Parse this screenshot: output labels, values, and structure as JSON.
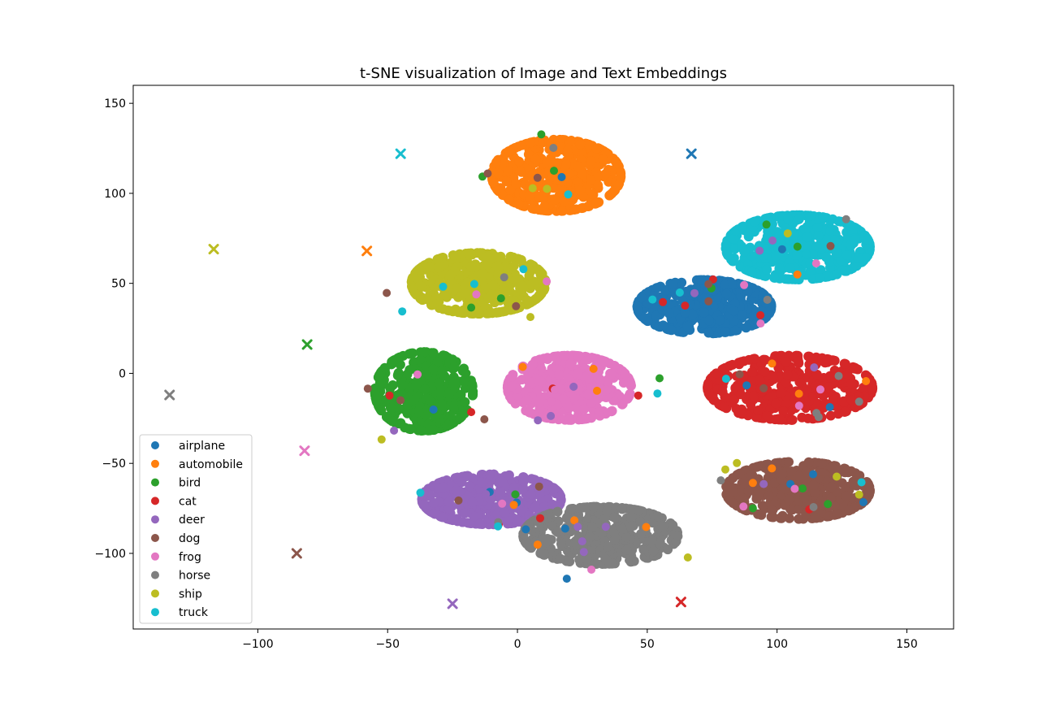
{
  "chart_data": {
    "type": "scatter",
    "title": "t-SNE visualization of Image and Text Embeddings",
    "xlabel": "",
    "ylabel": "",
    "xlim": [
      -148,
      168
    ],
    "ylim": [
      -142,
      160
    ],
    "xticks": [
      -100,
      -50,
      0,
      50,
      100,
      150
    ],
    "xtick_labels": [
      "−100",
      "−50",
      "0",
      "50",
      "100",
      "150"
    ],
    "yticks": [
      -100,
      -50,
      0,
      50,
      100,
      150
    ],
    "ytick_labels": [
      "−100",
      "−50",
      "0",
      "50",
      "100",
      "150"
    ],
    "grid": false,
    "legend_position": "lower-left",
    "series": [
      {
        "name": "airplane",
        "color": "#1f77b4",
        "cluster": {
          "center": [
            72,
            37
          ],
          "spread": [
            26,
            15
          ],
          "count": 420
        },
        "text_embedding": [
          67,
          122
        ]
      },
      {
        "name": "automobile",
        "color": "#ff7f0e",
        "cluster": {
          "center": [
            15,
            110
          ],
          "spread": [
            25,
            20
          ],
          "count": 420
        },
        "text_embedding": [
          -58,
          68
        ]
      },
      {
        "name": "bird",
        "color": "#2ca02c",
        "cluster": {
          "center": [
            -36,
            -10
          ],
          "spread": [
            19,
            22
          ],
          "count": 380
        },
        "text_embedding": [
          -81,
          16
        ]
      },
      {
        "name": "cat",
        "color": "#d62728",
        "cluster": {
          "center": [
            105,
            -8
          ],
          "spread": [
            32,
            18
          ],
          "count": 420
        },
        "text_embedding": [
          63,
          -127
        ]
      },
      {
        "name": "deer",
        "color": "#9467bd",
        "cluster": {
          "center": [
            -10,
            -70
          ],
          "spread": [
            27,
            14
          ],
          "count": 400
        },
        "text_embedding": [
          -25,
          -128
        ]
      },
      {
        "name": "dog",
        "color": "#8c564b",
        "cluster": {
          "center": [
            108,
            -65
          ],
          "spread": [
            28,
            16
          ],
          "count": 400
        },
        "text_embedding": [
          -85,
          -100
        ]
      },
      {
        "name": "frog",
        "color": "#e377c2",
        "cluster": {
          "center": [
            20,
            -8
          ],
          "spread": [
            24,
            18
          ],
          "count": 400
        },
        "text_embedding": [
          -82,
          -43
        ]
      },
      {
        "name": "horse",
        "color": "#7f7f7f",
        "cluster": {
          "center": [
            32,
            -90
          ],
          "spread": [
            30,
            16
          ],
          "count": 400
        },
        "text_embedding": [
          -134,
          -12
        ]
      },
      {
        "name": "ship",
        "color": "#bcbd22",
        "cluster": {
          "center": [
            -15,
            50
          ],
          "spread": [
            26,
            17
          ],
          "count": 400
        },
        "text_embedding": [
          -117,
          69
        ]
      },
      {
        "name": "truck",
        "color": "#17becf",
        "cluster": {
          "center": [
            108,
            70
          ],
          "spread": [
            28,
            18
          ],
          "count": 420
        },
        "text_embedding": [
          -45,
          122
        ]
      }
    ]
  }
}
